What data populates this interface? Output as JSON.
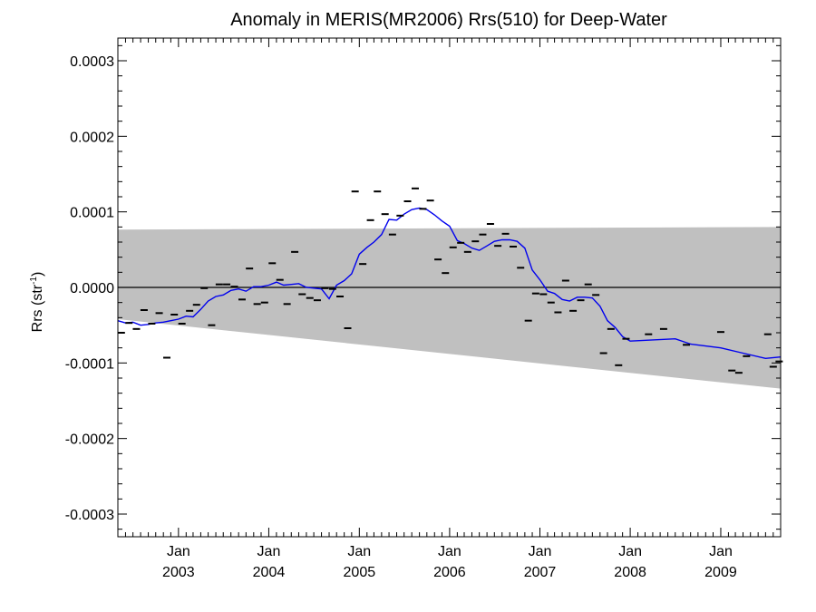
{
  "chart_data": {
    "type": "scatter",
    "title": "Anomaly in MERIS(MR2006) Rrs(510) for Deep-Water",
    "ylabel": {
      "text": "Rrs (str",
      "sup": "-1",
      "close": ")"
    },
    "xlabel": "",
    "ylim": [
      -0.00033,
      0.00033
    ],
    "xlim": [
      "2002-05-01",
      "2009-08-31"
    ],
    "yticks": [
      -0.0003,
      -0.0002,
      -0.0001,
      0.0,
      0.0001,
      0.0002,
      0.0003
    ],
    "ytick_labels": [
      "-0.0003",
      "-0.0002",
      "-0.0001",
      "0.0000",
      "0.0001",
      "0.0002",
      "0.0003"
    ],
    "xticks": [
      {
        "date": "2003-01-01",
        "month": "Jan",
        "year": "2003"
      },
      {
        "date": "2004-01-01",
        "month": "Jan",
        "year": "2004"
      },
      {
        "date": "2005-01-01",
        "month": "Jan",
        "year": "2005"
      },
      {
        "date": "2006-01-01",
        "month": "Jan",
        "year": "2006"
      },
      {
        "date": "2007-01-01",
        "month": "Jan",
        "year": "2007"
      },
      {
        "date": "2008-01-01",
        "month": "Jan",
        "year": "2008"
      },
      {
        "date": "2009-01-01",
        "month": "Jan",
        "year": "2009"
      }
    ],
    "grid": false,
    "zero_line": 0.0,
    "band": {
      "color": "#c0c0c0",
      "upper": [
        [
          "2002-05-01",
          7.65e-05
        ],
        [
          "2009-08-31",
          8e-05
        ]
      ],
      "lower": [
        [
          "2002-05-01",
          -4.2e-05
        ],
        [
          "2009-08-31",
          -0.000134
        ]
      ]
    },
    "monthly_anomalies": {
      "color": "#000000",
      "points": [
        [
          "2002-05-15",
          -6e-05
        ],
        [
          "2002-06-15",
          -4.7e-05
        ],
        [
          "2002-07-15",
          -5.5e-05
        ],
        [
          "2002-08-15",
          -3e-05
        ],
        [
          "2002-09-15",
          -4.8e-05
        ],
        [
          "2002-10-15",
          -3.4e-05
        ],
        [
          "2002-11-15",
          -9.3e-05
        ],
        [
          "2002-12-15",
          -3.6e-05
        ],
        [
          "2003-01-15",
          -4.8e-05
        ],
        [
          "2003-02-15",
          -3.1e-05
        ],
        [
          "2003-03-15",
          -2.3e-05
        ],
        [
          "2003-04-15",
          -1e-06
        ],
        [
          "2003-05-15",
          -5e-05
        ],
        [
          "2003-06-15",
          4e-06
        ],
        [
          "2003-07-15",
          4e-06
        ],
        [
          "2003-08-15",
          1e-06
        ],
        [
          "2003-09-15",
          -1.6e-05
        ],
        [
          "2003-10-15",
          2.5e-05
        ],
        [
          "2003-11-15",
          -2.2e-05
        ],
        [
          "2003-12-15",
          -2e-05
        ],
        [
          "2004-01-15",
          3.2e-05
        ],
        [
          "2004-02-15",
          1e-05
        ],
        [
          "2004-03-15",
          -2.2e-05
        ],
        [
          "2004-04-15",
          4.7e-05
        ],
        [
          "2004-05-15",
          -9e-06
        ],
        [
          "2004-06-15",
          -1.4e-05
        ],
        [
          "2004-07-15",
          -1.7e-05
        ],
        [
          "2004-08-15",
          -1e-06
        ],
        [
          "2004-09-15",
          -2e-06
        ],
        [
          "2004-10-15",
          -1.2e-05
        ],
        [
          "2004-11-15",
          -5.4e-05
        ],
        [
          "2004-12-15",
          0.000127
        ],
        [
          "2005-01-15",
          3.1e-05
        ],
        [
          "2005-02-15",
          8.9e-05
        ],
        [
          "2005-03-15",
          0.000127
        ],
        [
          "2005-04-15",
          9.7e-05
        ],
        [
          "2005-05-15",
          7e-05
        ],
        [
          "2005-06-15",
          9.5e-05
        ],
        [
          "2005-07-15",
          0.000114
        ],
        [
          "2005-08-15",
          0.000131
        ],
        [
          "2005-09-15",
          0.000104
        ],
        [
          "2005-10-15",
          0.000115
        ],
        [
          "2005-11-15",
          3.7e-05
        ],
        [
          "2005-12-15",
          1.9e-05
        ],
        [
          "2006-01-15",
          5.3e-05
        ],
        [
          "2006-02-15",
          5.9e-05
        ],
        [
          "2006-03-15",
          4.7e-05
        ],
        [
          "2006-04-15",
          6.1e-05
        ],
        [
          "2006-05-15",
          7e-05
        ],
        [
          "2006-06-15",
          8.4e-05
        ],
        [
          "2006-07-15",
          5.5e-05
        ],
        [
          "2006-08-15",
          7.1e-05
        ],
        [
          "2006-09-15",
          5.4e-05
        ],
        [
          "2006-10-15",
          2.6e-05
        ],
        [
          "2006-11-15",
          -4.4e-05
        ],
        [
          "2006-12-15",
          -8e-06
        ],
        [
          "2007-01-15",
          -9e-06
        ],
        [
          "2007-02-15",
          -2e-05
        ],
        [
          "2007-03-15",
          -3.3e-05
        ],
        [
          "2007-04-15",
          9e-06
        ],
        [
          "2007-05-15",
          -3.1e-05
        ],
        [
          "2007-06-15",
          -1.7e-05
        ],
        [
          "2007-07-15",
          4e-06
        ],
        [
          "2007-08-15",
          -1e-05
        ],
        [
          "2007-09-15",
          -8.7e-05
        ],
        [
          "2007-10-15",
          -5.5e-05
        ],
        [
          "2007-11-15",
          -0.000103
        ],
        [
          "2007-12-15",
          -6.8e-05
        ],
        [
          "2008-03-15",
          -6.2e-05
        ],
        [
          "2008-05-15",
          -5.5e-05
        ],
        [
          "2008-08-15",
          -7.6e-05
        ],
        [
          "2009-01-01",
          -5.9e-05
        ],
        [
          "2009-02-15",
          -0.00011
        ],
        [
          "2009-03-15",
          -0.000113
        ],
        [
          "2009-04-15",
          -9.1e-05
        ],
        [
          "2009-07-10",
          -6.2e-05
        ],
        [
          "2009-08-01",
          -0.000105
        ],
        [
          "2009-08-25",
          -9.8e-05
        ]
      ]
    },
    "running_mean": {
      "color": "#0000ee",
      "points": [
        [
          "2002-05-01",
          -4.4e-05
        ],
        [
          "2002-06-01",
          -4.7e-05
        ],
        [
          "2002-07-01",
          -4.6e-05
        ],
        [
          "2002-08-01",
          -5e-05
        ],
        [
          "2002-09-01",
          -4.9e-05
        ],
        [
          "2002-10-01",
          -4.7e-05
        ],
        [
          "2002-11-01",
          -4.6e-05
        ],
        [
          "2002-12-01",
          -4.4e-05
        ],
        [
          "2003-01-01",
          -4.2e-05
        ],
        [
          "2003-02-01",
          -3.8e-05
        ],
        [
          "2003-03-01",
          -3.9e-05
        ],
        [
          "2003-04-01",
          -2.9e-05
        ],
        [
          "2003-05-01",
          -1.8e-05
        ],
        [
          "2003-06-01",
          -1.2e-05
        ],
        [
          "2003-07-01",
          -1e-05
        ],
        [
          "2003-08-01",
          -4e-06
        ],
        [
          "2003-09-01",
          -2e-06
        ],
        [
          "2003-10-01",
          -5e-06
        ],
        [
          "2003-11-01",
          1e-06
        ],
        [
          "2003-12-01",
          1e-06
        ],
        [
          "2004-01-01",
          3e-06
        ],
        [
          "2004-02-01",
          7e-06
        ],
        [
          "2004-03-01",
          3e-06
        ],
        [
          "2004-04-01",
          4e-06
        ],
        [
          "2004-05-01",
          5e-06
        ],
        [
          "2004-06-01",
          0.0
        ],
        [
          "2004-07-01",
          -1e-06
        ],
        [
          "2004-08-01",
          -2e-06
        ],
        [
          "2004-09-01",
          -1.5e-05
        ],
        [
          "2004-10-01",
          3e-06
        ],
        [
          "2004-11-01",
          9e-06
        ],
        [
          "2004-12-01",
          1.8e-05
        ],
        [
          "2005-01-01",
          4.4e-05
        ],
        [
          "2005-02-01",
          5.3e-05
        ],
        [
          "2005-03-01",
          6e-05
        ],
        [
          "2005-04-01",
          7e-05
        ],
        [
          "2005-05-01",
          9e-05
        ],
        [
          "2005-06-01",
          8.9e-05
        ],
        [
          "2005-07-01",
          9.7e-05
        ],
        [
          "2005-08-01",
          0.000103
        ],
        [
          "2005-09-01",
          0.000105
        ],
        [
          "2005-10-01",
          0.000103
        ],
        [
          "2005-11-01",
          9.6e-05
        ],
        [
          "2005-12-01",
          8.8e-05
        ],
        [
          "2006-01-01",
          8.1e-05
        ],
        [
          "2006-02-01",
          6.2e-05
        ],
        [
          "2006-03-01",
          5.8e-05
        ],
        [
          "2006-04-01",
          5.2e-05
        ],
        [
          "2006-05-01",
          4.9e-05
        ],
        [
          "2006-06-01",
          5.5e-05
        ],
        [
          "2006-07-01",
          6.1e-05
        ],
        [
          "2006-08-01",
          6.3e-05
        ],
        [
          "2006-09-01",
          6.3e-05
        ],
        [
          "2006-10-01",
          6.1e-05
        ],
        [
          "2006-11-01",
          5.2e-05
        ],
        [
          "2006-12-01",
          2.3e-05
        ],
        [
          "2007-01-01",
          1e-05
        ],
        [
          "2007-02-01",
          -5e-06
        ],
        [
          "2007-03-01",
          -8e-06
        ],
        [
          "2007-04-01",
          -1.6e-05
        ],
        [
          "2007-05-01",
          -1.8e-05
        ],
        [
          "2007-06-01",
          -1.3e-05
        ],
        [
          "2007-07-01",
          -1.3e-05
        ],
        [
          "2007-08-01",
          -1.4e-05
        ],
        [
          "2007-09-01",
          -2.5e-05
        ],
        [
          "2007-10-01",
          -4.4e-05
        ],
        [
          "2007-11-01",
          -5.3e-05
        ],
        [
          "2007-12-01",
          -6.5e-05
        ],
        [
          "2008-01-01",
          -7.1e-05
        ],
        [
          "2008-07-01",
          -6.8e-05
        ],
        [
          "2008-09-01",
          -7.5e-05
        ],
        [
          "2009-01-01",
          -8e-05
        ],
        [
          "2009-04-01",
          -8.7e-05
        ],
        [
          "2009-07-01",
          -9.4e-05
        ],
        [
          "2009-08-31",
          -9.2e-05
        ]
      ]
    }
  }
}
